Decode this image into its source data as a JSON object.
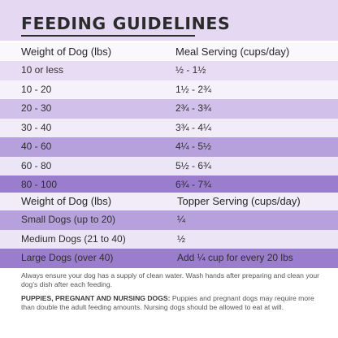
{
  "title": "FEEDING GUIDELINES",
  "colors": {
    "band_light": "#e4d8f2",
    "band_shades": [
      "#e8dcf5",
      "#ddd0f0",
      "#d0c0ea",
      "#c3b0e3",
      "#b7a1dd",
      "#a98fd6",
      "#9b7dcd",
      "#8f6cc7",
      "#8762c4",
      "#7e58bf"
    ],
    "stripe_light_overlay": "#ffffff",
    "text": "#2a2a2a"
  },
  "meal_table": {
    "headers": [
      "Weight of Dog (lbs)",
      "Meal Serving (cups/day)"
    ],
    "rows": [
      [
        "10 or less",
        "½ - 1½"
      ],
      [
        "10 - 20",
        "1½ - 2¾"
      ],
      [
        "20 - 30",
        "2¾ - 3¾"
      ],
      [
        "30 - 40",
        "3¾ - 4¼"
      ],
      [
        "40 - 60",
        "4¼ - 5½"
      ],
      [
        "60 - 80",
        "5½ - 6¾"
      ],
      [
        "80 - 100",
        "6¾ - 7¾"
      ]
    ]
  },
  "topper_table": {
    "headers": [
      "Weight of Dog (lbs)",
      "Topper Serving (cups/day)"
    ],
    "rows": [
      [
        "Small Dogs (up to 20)",
        "¼"
      ],
      [
        "Medium Dogs (21 to 40)",
        "½"
      ],
      [
        "Large Dogs (over 40)",
        "Add ¼ cup for every 20 lbs"
      ]
    ]
  },
  "notes": {
    "water": "Always ensure your dog has a supply of clean water. Wash hands after preparing and clean your dog's dish after each feeding.",
    "puppies_label": "PUPPIES, PREGNANT AND NURSING DOGS:",
    "puppies_text": "Puppies and pregnant dogs may require more than double the adult feeding amounts. Nursing dogs should be allowed to eat at will."
  }
}
